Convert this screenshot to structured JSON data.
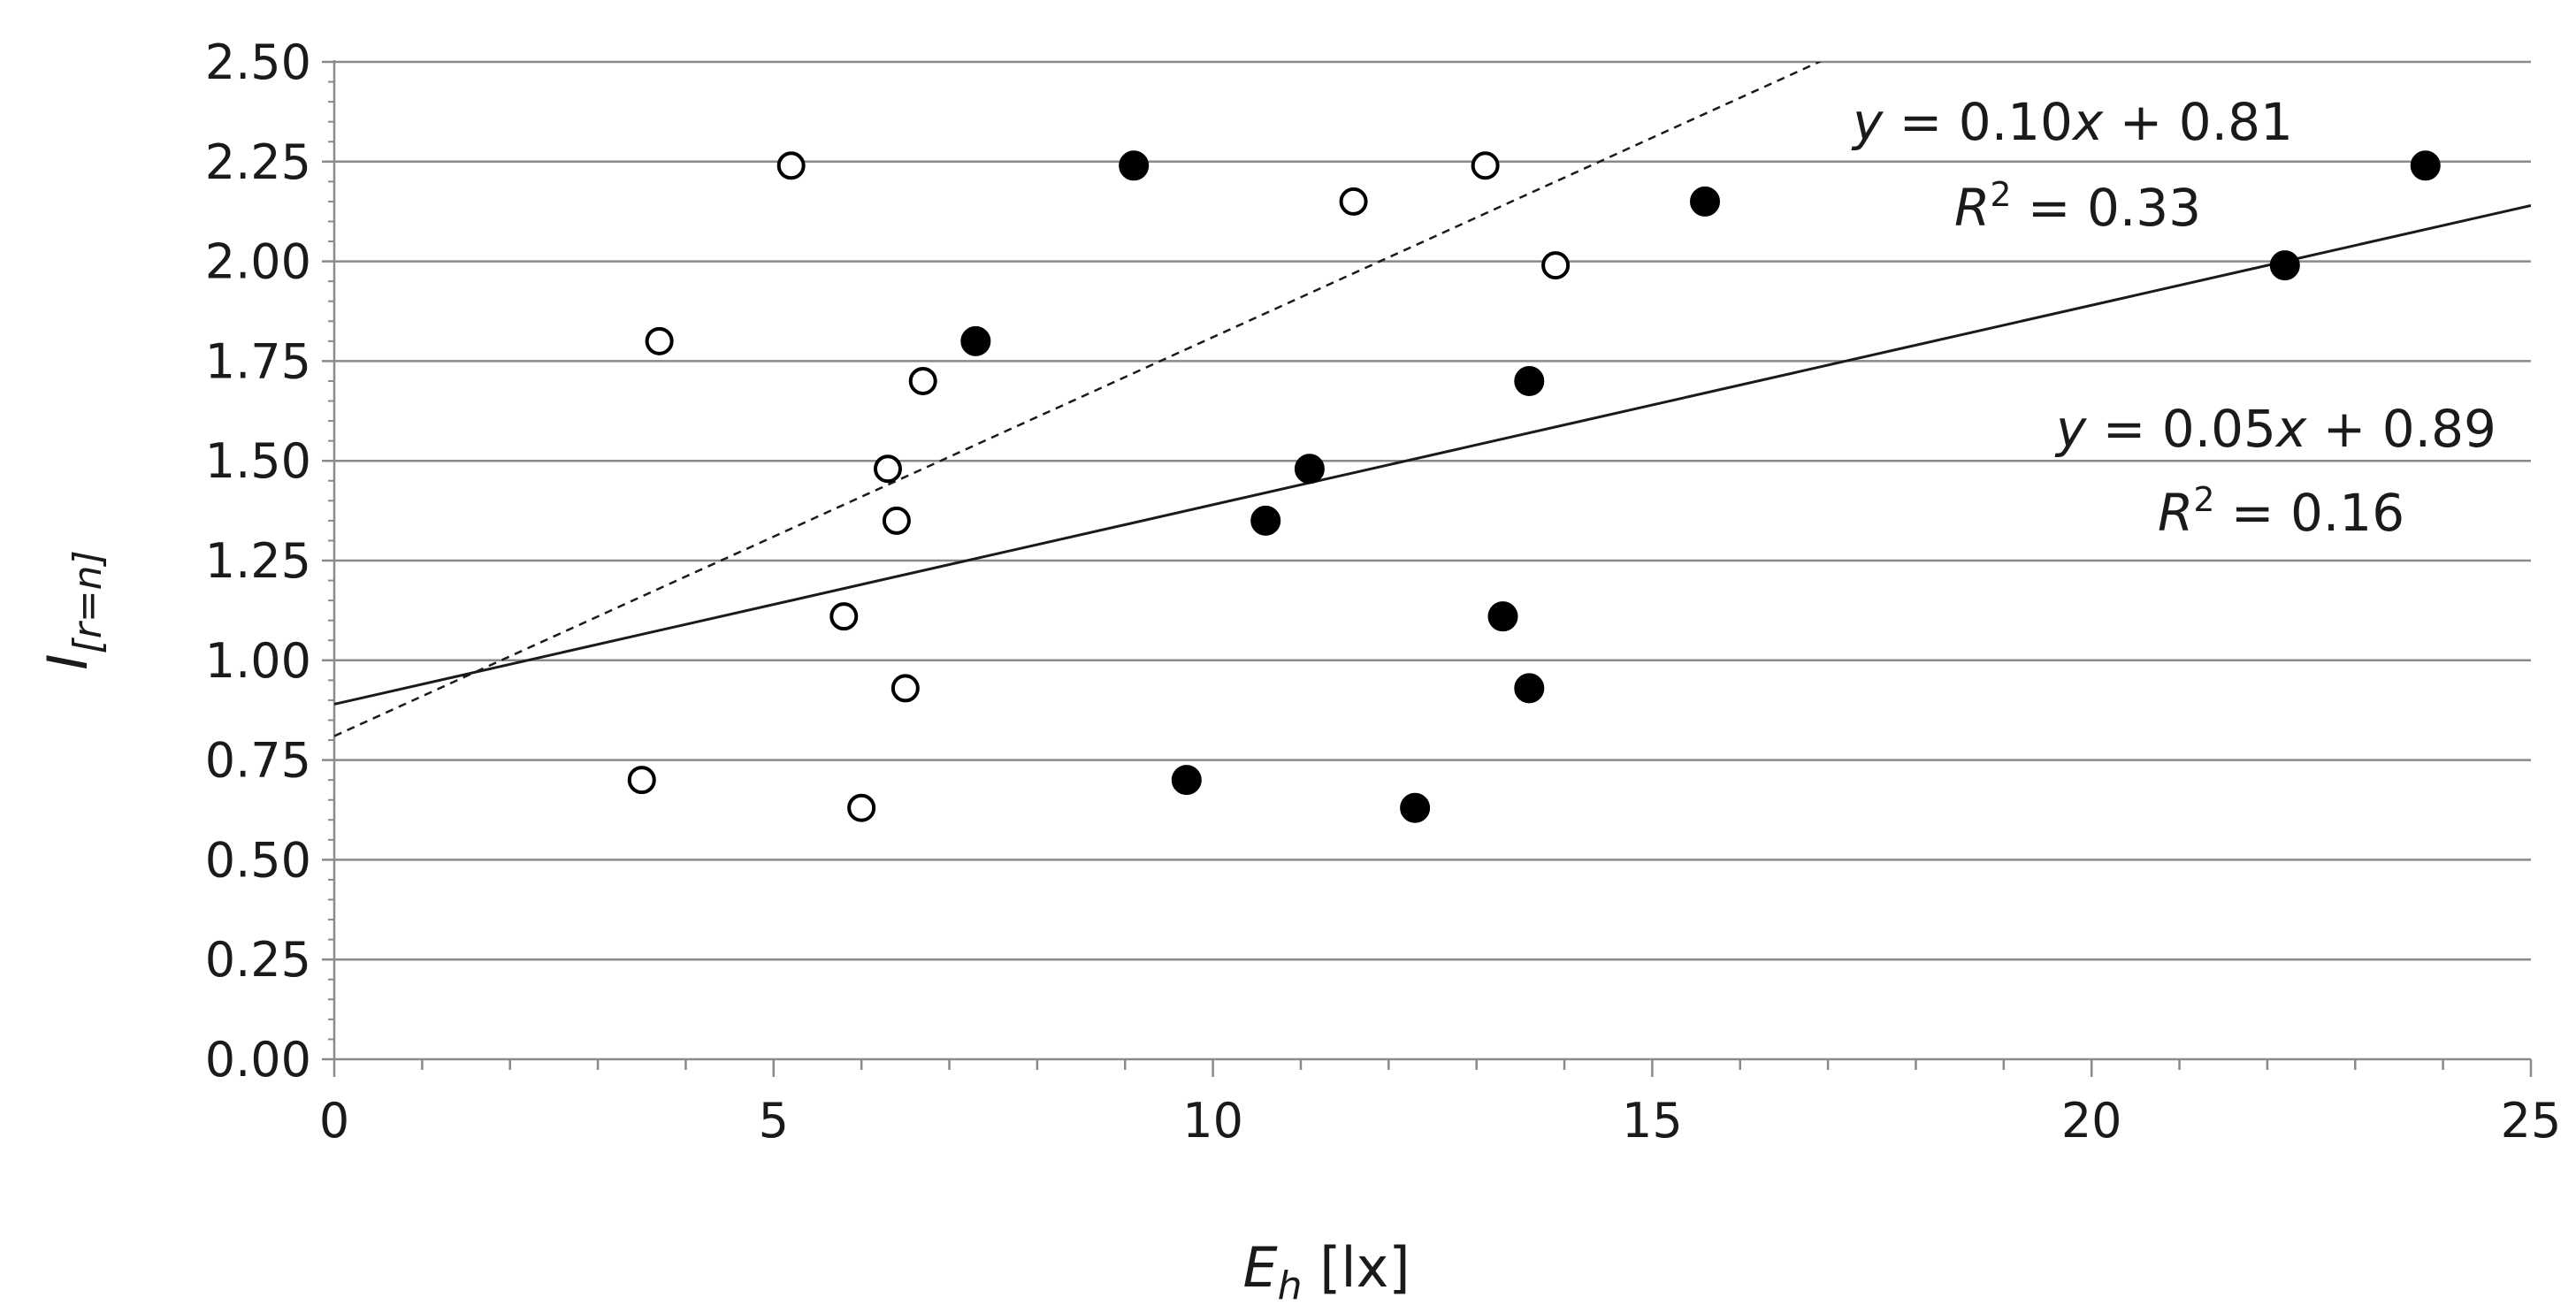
{
  "chart_data": {
    "type": "scatter",
    "x_axis": {
      "label_main": "E",
      "label_sub": "h",
      "label_unit": " [lx]",
      "min": 0,
      "max": 25,
      "ticks": [
        0,
        5,
        10,
        15,
        20,
        25
      ],
      "tick_labels": [
        "0",
        "5",
        "10",
        "15",
        "20",
        "25"
      ]
    },
    "y_axis": {
      "label_main": "I",
      "label_sub": "[r=n]",
      "min": 0,
      "max": 2.5,
      "ticks": [
        0,
        0.25,
        0.5,
        0.75,
        1.0,
        1.25,
        1.5,
        1.75,
        2.0,
        2.25,
        2.5
      ],
      "tick_labels": [
        "0.00",
        "0.25",
        "0.50",
        "0.75",
        "1.00",
        "1.25",
        "1.50",
        "1.75",
        "2.00",
        "2.25",
        "2.50"
      ]
    },
    "grid": "horizontal",
    "series": [
      {
        "marker": "open-circle",
        "trend": "dashed",
        "x": [
          5.2,
          3.7,
          6.7,
          6.3,
          6.4,
          5.8,
          6.5,
          3.5,
          6.0,
          11.6,
          13.1,
          13.9
        ],
        "y": [
          2.24,
          1.8,
          1.7,
          1.48,
          1.35,
          1.11,
          0.93,
          0.7,
          0.63,
          2.15,
          2.24,
          1.99
        ],
        "fit": {
          "slope": 0.1,
          "intercept": 0.81
        },
        "equation": {
          "y_sym": "y",
          "x_sym": "x",
          "eq_mid": " = 0.10",
          "eq_end": " + 0.81",
          "r_sym": "R",
          "r_sup": "2",
          "r_val": " = 0.33"
        }
      },
      {
        "marker": "filled-circle",
        "trend": "solid",
        "x": [
          9.1,
          7.3,
          9.7,
          10.6,
          11.1,
          12.3,
          13.3,
          13.6,
          13.6,
          15.6,
          22.2,
          23.8
        ],
        "y": [
          2.24,
          1.8,
          0.7,
          1.35,
          1.48,
          0.63,
          1.11,
          0.93,
          1.7,
          2.15,
          1.99,
          2.24
        ],
        "fit": {
          "slope": 0.05,
          "intercept": 0.89
        },
        "equation": {
          "y_sym": "y",
          "x_sym": "x",
          "eq_mid": " = 0.05",
          "eq_end": " + 0.89",
          "r_sym": "R",
          "r_sup": "2",
          "r_val": " = 0.16"
        }
      }
    ]
  }
}
